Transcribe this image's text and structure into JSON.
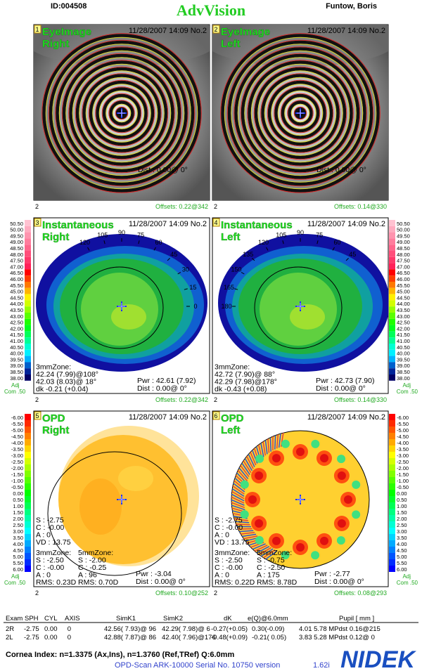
{
  "header": {
    "id": "ID:004508",
    "title": "AdvVision",
    "patient": "Funtow, Boris"
  },
  "panels": [
    {
      "number": "1",
      "title": [
        "EyeImage",
        "Right"
      ],
      "datetime": "11/28/2007 14:09 No.2",
      "right_lines": [
        "Dist : 0.00@ 0°"
      ],
      "footer": "2",
      "offsets": "Offsets: 0.22@342"
    },
    {
      "number": "2",
      "title": [
        "EyeImage",
        "Left"
      ],
      "datetime": "11/28/2007 14:09 No.2",
      "right_lines": [
        "Dist : 0.00@ 0°"
      ],
      "footer": "2",
      "offsets": "Offsets: 0.14@330"
    },
    {
      "number": "3",
      "title": [
        "Instantaneous",
        "Right"
      ],
      "datetime": "11/28/2007 14:09 No.2",
      "angles": [
        0,
        15,
        30,
        45,
        60,
        75,
        90,
        105,
        120
      ],
      "left_lines": [
        "3mmZone:",
        "42.24 (7.99)@108°",
        "42.03 (8.03)@ 18°",
        "dk -0.21 (+0.04)"
      ],
      "right_lines": [
        "Pwr : 42.61 (7.92)",
        "Dist : 0.00@ 0°"
      ],
      "footer": "2",
      "offsets": "Offsets: 0.22@342"
    },
    {
      "number": "4",
      "title": [
        "Instantaneous",
        "Left"
      ],
      "datetime": "11/28/2007 14:09 No.2",
      "angles": [
        45,
        60,
        75,
        90,
        105,
        120,
        135,
        150,
        165,
        180
      ],
      "left_lines": [
        "3mmZone:",
        "42.72 (7.90)@ 88°",
        "42.29 (7.98)@178°",
        "dk -0.43 (+0.08)"
      ],
      "right_lines": [
        "Pwr : 42.73 (7.90)",
        "Dist : 0.00@ 0°"
      ],
      "footer": "2",
      "offsets": "Offsets: 0.14@330"
    },
    {
      "number": "5",
      "title": [
        "OPD",
        "Right"
      ],
      "datetime": "11/28/2007 14:09 No.2",
      "upper_lines": [
        "S : -2.75",
        "C : -0.00",
        "A : 0",
        "VD : 13.75"
      ],
      "left_lines": [
        "3mmZone:",
        "S : -2.50",
        "C : -0.00",
        "A : 0",
        "RMS: 0.23D"
      ],
      "mid_lines": [
        "5mmZone:",
        "S : -2.00",
        "C : -0.25",
        "A : 96",
        "RMS: 0.70D"
      ],
      "right_lines": [
        "Pwr : -3.04",
        "Dist : 0.00@ 0°"
      ],
      "footer": "2",
      "offsets": "Offsets: 0.10@252"
    },
    {
      "number": "6",
      "title": [
        "OPD",
        "Left"
      ],
      "datetime": "11/28/2007 14:09 No.2",
      "upper_lines": [
        "S : -2.75",
        "C : -0.00",
        "A : 0",
        "VD : 13.75"
      ],
      "left_lines": [
        "3mmZone:",
        "S : -2.50",
        "C : -0.00",
        "A : 0",
        "RMS: 0.22D"
      ],
      "mid_lines": [
        "5mmZone:",
        "S : -0.75",
        "C : -2.50",
        "A : 175",
        "RMS: 8.78D"
      ],
      "right_lines": [
        "Pwr : -2.77",
        "Dist : 0.00@ 0°"
      ],
      "footer": "2",
      "offsets": "Offsets: 0.08@293"
    }
  ],
  "scales": {
    "topography": [
      "50.50",
      "50.00",
      "49.50",
      "49.00",
      "48.50",
      "48.00",
      "47.50",
      "47.00",
      "46.50",
      "46.00",
      "45.50",
      "45.00",
      "44.50",
      "44.00",
      "43.50",
      "43.00",
      "42.50",
      "42.00",
      "41.50",
      "41.00",
      "40.50",
      "40.00",
      "39.50",
      "39.00",
      "38.50",
      "38.00"
    ],
    "opd": [
      "-6.00",
      "-5.50",
      "-5.00",
      "-4.50",
      "-4.00",
      "-3.50",
      "-3.00",
      "-2.50",
      "-2.00",
      "-1.50",
      "-1.00",
      "-0.50",
      "0.00",
      "0.50",
      "1.00",
      "1.50",
      "2.00",
      "2.50",
      "3.00",
      "3.50",
      "4.00",
      "4.50",
      "5.00",
      "5.50",
      "6.00"
    ],
    "adj": "Adj",
    "com": "Com .50"
  },
  "table": {
    "headers": [
      "Exam",
      "SPH",
      "CYL",
      "AXIS",
      "SimK1",
      "SimK2",
      "dK",
      "e(Q)@6.0mm",
      "Pupil [ mm ]"
    ],
    "rows": [
      [
        "2R",
        "-2.75",
        "0.00",
        "0",
        "42.56( 7.93)@ 96",
        "42.29( 7.98)@ 6",
        "-0.27(+0.05)",
        "0.30(-0.09)",
        "4.01 5.78 MPdst 0.16@215"
      ],
      [
        "2L",
        "-2.75",
        "0.00",
        "0",
        "42.88( 7.87)@ 86",
        "42.40( 7.96)@176",
        "-0.48(+0.09)",
        "-0.21( 0.05)",
        "3.83 5.28 MPdst 0.12@ 0"
      ]
    ]
  },
  "footer": {
    "index": "Cornea Index: n=1.3375 (Ax,Ins), n=1.3760 (Ref,TRef) Q:6.0mm",
    "device": "OPD-Scan ARK-10000 Serial No. 10750 version",
    "version": "1.62i",
    "logo": "NIDEK"
  }
}
